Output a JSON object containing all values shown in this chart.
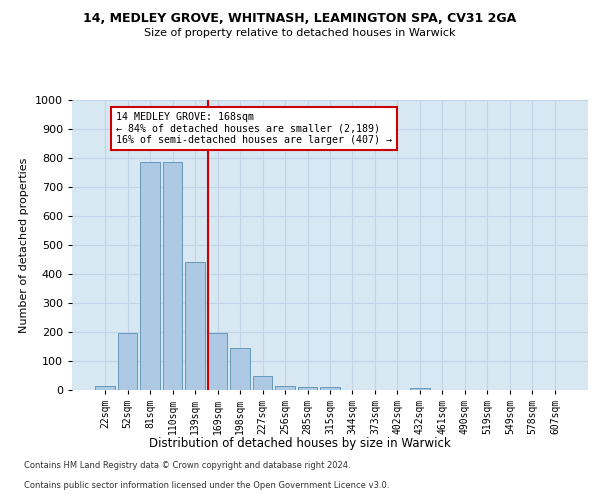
{
  "title1": "14, MEDLEY GROVE, WHITNASH, LEAMINGTON SPA, CV31 2GA",
  "title2": "Size of property relative to detached houses in Warwick",
  "xlabel": "Distribution of detached houses by size in Warwick",
  "ylabel": "Number of detached properties",
  "categories": [
    "22sqm",
    "52sqm",
    "81sqm",
    "110sqm",
    "139sqm",
    "169sqm",
    "198sqm",
    "227sqm",
    "256sqm",
    "285sqm",
    "315sqm",
    "344sqm",
    "373sqm",
    "402sqm",
    "432sqm",
    "461sqm",
    "490sqm",
    "519sqm",
    "549sqm",
    "578sqm",
    "607sqm"
  ],
  "values": [
    15,
    195,
    785,
    785,
    440,
    195,
    145,
    50,
    15,
    10,
    10,
    0,
    0,
    0,
    8,
    0,
    0,
    0,
    0,
    0,
    0
  ],
  "bar_color": "#adc9e4",
  "bar_edge_color": "#6699bb",
  "grid_color": "#c0d5e8",
  "background_color": "#d8e8f2",
  "vline_color": "#cc0000",
  "annotation_text": "14 MEDLEY GROVE: 168sqm\n← 84% of detached houses are smaller (2,189)\n16% of semi-detached houses are larger (407) →",
  "annotation_box_color": "#ffffff",
  "annotation_box_edge": "#cc0000",
  "ylim": [
    0,
    1000
  ],
  "yticks": [
    0,
    100,
    200,
    300,
    400,
    500,
    600,
    700,
    800,
    900,
    1000
  ],
  "footer1": "Contains HM Land Registry data © Crown copyright and database right 2024.",
  "footer2": "Contains public sector information licensed under the Open Government Licence v3.0."
}
